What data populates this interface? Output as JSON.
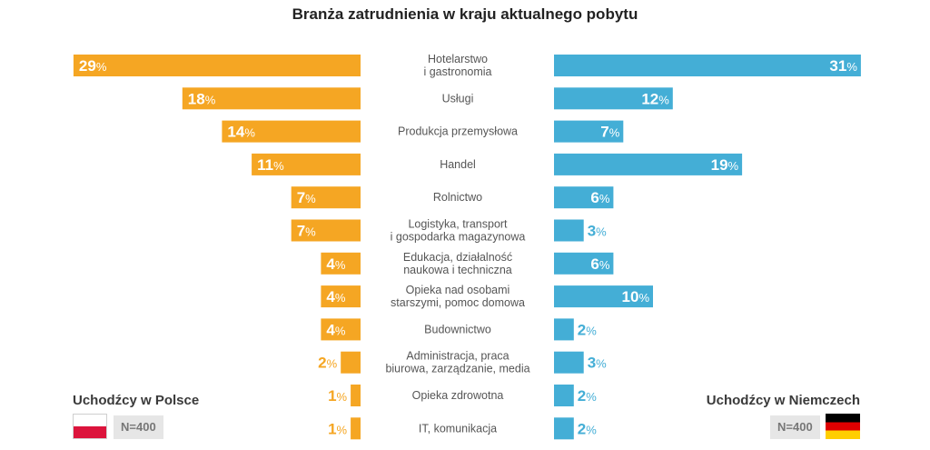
{
  "chart_data": {
    "type": "bar",
    "title": "Branża zatrudnienia w kraju aktualnego pobytu",
    "categories": [
      [
        "Hotelarstwo",
        "i gastronomia"
      ],
      [
        "Usługi"
      ],
      [
        "Produkcja przemysłowa"
      ],
      [
        "Handel"
      ],
      [
        "Rolnictwo"
      ],
      [
        "Logistyka, transport",
        "i gospodarka magazynowa"
      ],
      [
        "Edukacja, działalność",
        "naukowa i techniczna"
      ],
      [
        "Opieka nad osobami",
        "starszymi, pomoc domowa"
      ],
      [
        "Budownictwo"
      ],
      [
        "Administracja, praca",
        "biurowa, zarządzanie, media"
      ],
      [
        "Opieka zdrowotna"
      ],
      [
        "IT, komunikacja"
      ]
    ],
    "series": [
      {
        "name": "Uchodźcy w Polsce",
        "sample": "N=400",
        "color": "#f5a623",
        "values": [
          29,
          18,
          14,
          11,
          7,
          7,
          4,
          4,
          4,
          2,
          1,
          1
        ]
      },
      {
        "name": "Uchodźcy w Niemczech",
        "sample": "N=400",
        "color": "#44aed6",
        "values": [
          31,
          12,
          7,
          19,
          6,
          3,
          6,
          10,
          2,
          3,
          2,
          2
        ]
      }
    ],
    "unit": "%"
  }
}
